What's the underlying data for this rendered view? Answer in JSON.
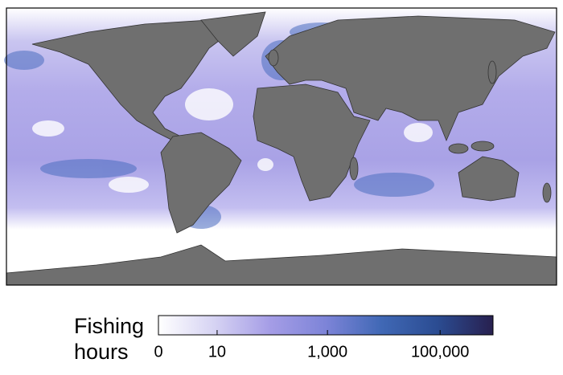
{
  "legend": {
    "title_lines": [
      "Fishing",
      "hours"
    ],
    "scale": "log",
    "lim": [
      0,
      870000
    ],
    "ticks": [
      0,
      10,
      {
        "value": 1000,
        "label": "1,000"
      },
      {
        "value": 100000,
        "label": "100,000"
      }
    ],
    "colors": [
      "#ffffff",
      "#d6d3f3",
      "#a59de6",
      "#7d84d8",
      "#4068b5",
      "#2b4c92",
      "#28204f"
    ]
  }
}
